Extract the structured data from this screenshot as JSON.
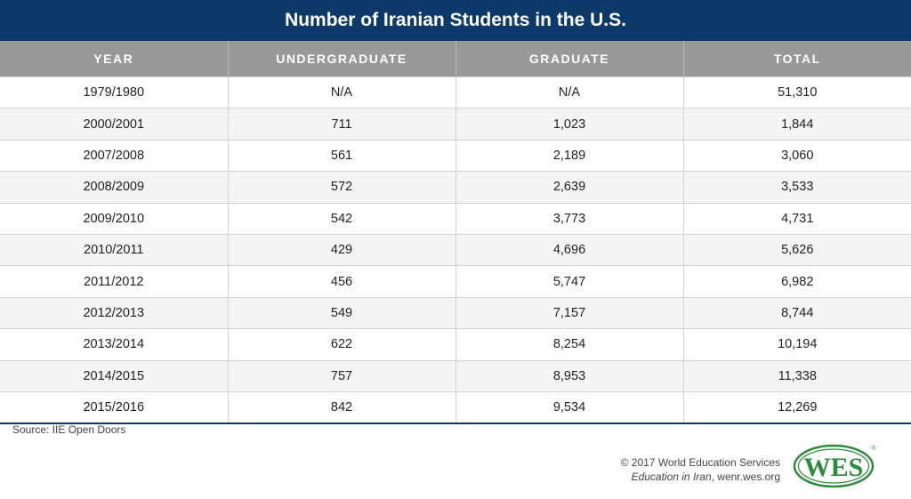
{
  "title": "Number of Iranian Students in the U.S.",
  "columns": [
    "YEAR",
    "UNDERGRADUATE",
    "GRADUATE",
    "TOTAL"
  ],
  "rows": [
    [
      "1979/1980",
      "N/A",
      "N/A",
      "51,310"
    ],
    [
      "2000/2001",
      "711",
      "1,023",
      "1,844"
    ],
    [
      "2007/2008",
      "561",
      "2,189",
      "3,060"
    ],
    [
      "2008/2009",
      "572",
      "2,639",
      "3,533"
    ],
    [
      "2009/2010",
      "542",
      "3,773",
      "4,731"
    ],
    [
      "2010/2011",
      "429",
      "4,696",
      "5,626"
    ],
    [
      "2011/2012",
      "456",
      "5,747",
      "6,982"
    ],
    [
      "2012/2013",
      "549",
      "7,157",
      "8,744"
    ],
    [
      "2013/2014",
      "622",
      "8,254",
      "10,194"
    ],
    [
      "2014/2015",
      "757",
      "8,953",
      "11,338"
    ],
    [
      "2015/2016",
      "842",
      "9,534",
      "12,269"
    ]
  ],
  "source": "Source: IIE Open Doors",
  "credit": {
    "copyright": "© 2017 World Education Services",
    "publication": "Education in Iran",
    "website": ", wenr.wes.org"
  },
  "logo": {
    "text": "WES",
    "mark": "®",
    "color": "#2e8b3e"
  },
  "colors": {
    "title_bg": "#0e3a69",
    "header_bg": "#999999"
  }
}
